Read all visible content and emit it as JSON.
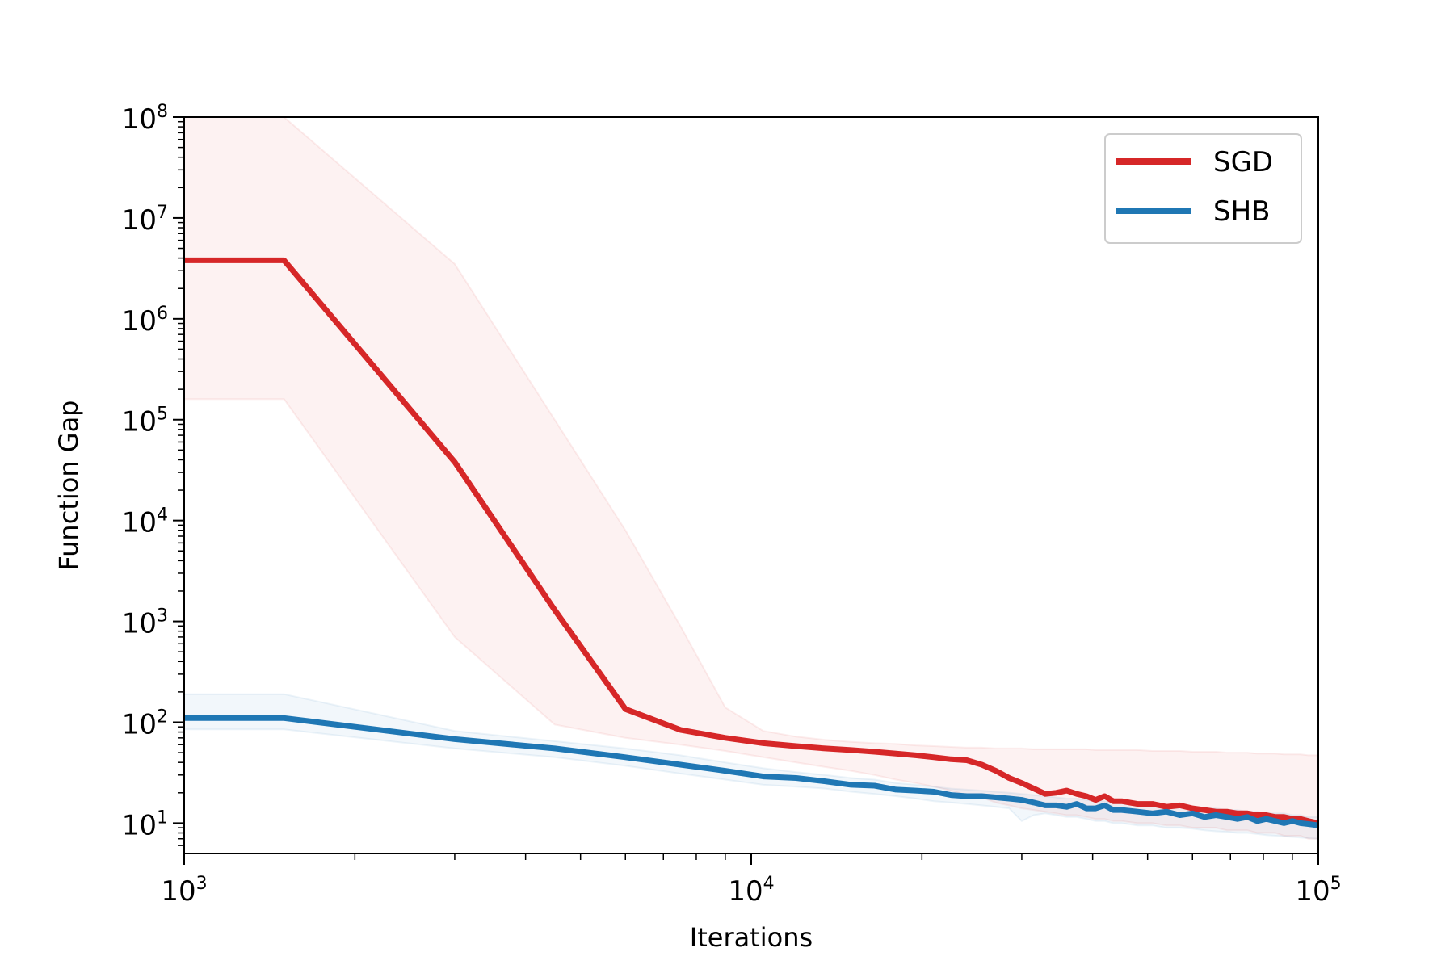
{
  "chart_data": {
    "type": "line",
    "xlabel": "Iterations",
    "ylabel": "Function Gap",
    "xscale": "log",
    "yscale": "log",
    "xlim": [
      1000,
      100000
    ],
    "ylim": [
      5,
      100000000
    ],
    "x_ticks": [
      {
        "value": 1000,
        "base": "10",
        "exp": "3"
      },
      {
        "value": 10000,
        "base": "10",
        "exp": "4"
      },
      {
        "value": 100000,
        "base": "10",
        "exp": "5"
      }
    ],
    "y_ticks": [
      {
        "value": 10,
        "base": "10",
        "exp": "1"
      },
      {
        "value": 100,
        "base": "10",
        "exp": "2"
      },
      {
        "value": 1000,
        "base": "10",
        "exp": "3"
      },
      {
        "value": 10000,
        "base": "10",
        "exp": "4"
      },
      {
        "value": 100000,
        "base": "10",
        "exp": "5"
      },
      {
        "value": 1000000,
        "base": "10",
        "exp": "6"
      },
      {
        "value": 10000000,
        "base": "10",
        "exp": "7"
      },
      {
        "value": 100000000,
        "base": "10",
        "exp": "8"
      }
    ],
    "grid": false,
    "legend_position": "top-right",
    "series": [
      {
        "name": "SGD",
        "color": "#d62728",
        "x": [
          1000,
          1500,
          3000,
          4500,
          6000,
          7500,
          9000,
          10500,
          12000,
          13500,
          15000,
          16500,
          18000,
          19500,
          21000,
          22500,
          24000,
          25500,
          27000,
          28500,
          30000,
          31500,
          33000,
          34500,
          36000,
          37500,
          39000,
          40500,
          42000,
          43500,
          45000,
          48000,
          51000,
          54000,
          57000,
          60000,
          63000,
          66000,
          69000,
          72000,
          75000,
          78000,
          81000,
          84000,
          87000,
          90000,
          93000,
          96000,
          100000
        ],
        "y": [
          3800000,
          3800000,
          38000,
          1300,
          135,
          84,
          70,
          62,
          58,
          55,
          53,
          51,
          49,
          47,
          45,
          43,
          42,
          38,
          33,
          28,
          25,
          22,
          19.5,
          20,
          21,
          19.5,
          18.5,
          17,
          18.5,
          16.5,
          16.5,
          15.5,
          15.5,
          14.5,
          15,
          14,
          13.5,
          13,
          13,
          12.5,
          12.5,
          12,
          12,
          11.5,
          11.5,
          11,
          11,
          10.5,
          10
        ],
        "band_upper": [
          100000000,
          100000000,
          3500000,
          100000,
          8000,
          900,
          140,
          82,
          72,
          67,
          64,
          62,
          61,
          59,
          58,
          57,
          56,
          56,
          55,
          55,
          55,
          54,
          54,
          54,
          54,
          54,
          54,
          53,
          53,
          53,
          53,
          53,
          52,
          52,
          52,
          51,
          51,
          51,
          50,
          50,
          50,
          49,
          49,
          49,
          48,
          48,
          48,
          47,
          47
        ],
        "band_lower": [
          160000,
          160000,
          700,
          95,
          70,
          60,
          52,
          45,
          40,
          36,
          33,
          30,
          27,
          25,
          23,
          21,
          19,
          18,
          16,
          15,
          14,
          13.5,
          13,
          12.5,
          12,
          12,
          11.5,
          11,
          11,
          10.5,
          10.5,
          10,
          10,
          9.5,
          9.5,
          9,
          9,
          9,
          8.5,
          8.5,
          8.5,
          8,
          8,
          8,
          7.5,
          7.5,
          7.5,
          7,
          7
        ]
      },
      {
        "name": "SHB",
        "color": "#1f77b4",
        "x": [
          1000,
          1500,
          3000,
          4500,
          6000,
          7500,
          9000,
          10500,
          12000,
          13500,
          15000,
          16500,
          18000,
          19500,
          21000,
          22500,
          24000,
          25500,
          27000,
          28500,
          30000,
          31500,
          33000,
          34500,
          36000,
          37500,
          39000,
          40500,
          42000,
          43500,
          45000,
          48000,
          51000,
          54000,
          57000,
          60000,
          63000,
          66000,
          69000,
          72000,
          75000,
          78000,
          81000,
          84000,
          87000,
          90000,
          93000,
          96000,
          100000
        ],
        "y": [
          110,
          110,
          68,
          55,
          45,
          38,
          33,
          29,
          28,
          26,
          24,
          23.5,
          21.5,
          21,
          20.5,
          19,
          18.5,
          18.5,
          18,
          17.5,
          17,
          16,
          15,
          15,
          14.5,
          15.5,
          14,
          14,
          15,
          13.5,
          13.5,
          13,
          12.5,
          13,
          12,
          12.5,
          11.5,
          12,
          11.5,
          11,
          11.5,
          10.5,
          11,
          10.5,
          10,
          10.5,
          10,
          9.8,
          9.5
        ],
        "band_upper": [
          190,
          190,
          82,
          65,
          55,
          47,
          40,
          35,
          32,
          30,
          28,
          27,
          25,
          24,
          23,
          22,
          21.5,
          21,
          20.5,
          20,
          19.5,
          19,
          18.5,
          18,
          17.5,
          17.5,
          17,
          16.5,
          16.5,
          16,
          16,
          15.5,
          15,
          15,
          14.5,
          14.5,
          14,
          14,
          13.5,
          13.5,
          13,
          13,
          12.5,
          12.5,
          12.5,
          12,
          12,
          11.5,
          11.5
        ],
        "band_lower": [
          85,
          85,
          55,
          45,
          37,
          31,
          27,
          24,
          23,
          22,
          20.5,
          19.5,
          18.5,
          17.5,
          16.5,
          16,
          15.5,
          15,
          14.5,
          14,
          10.5,
          12,
          12.5,
          12,
          11.5,
          11.5,
          11,
          10.5,
          10.5,
          10,
          10,
          9.5,
          9.5,
          9,
          9,
          8.8,
          8.5,
          8.3,
          8.2,
          8,
          8,
          7.8,
          7.6,
          7.5,
          7.4,
          7.3,
          7.2,
          7.1,
          7
        ]
      }
    ]
  }
}
